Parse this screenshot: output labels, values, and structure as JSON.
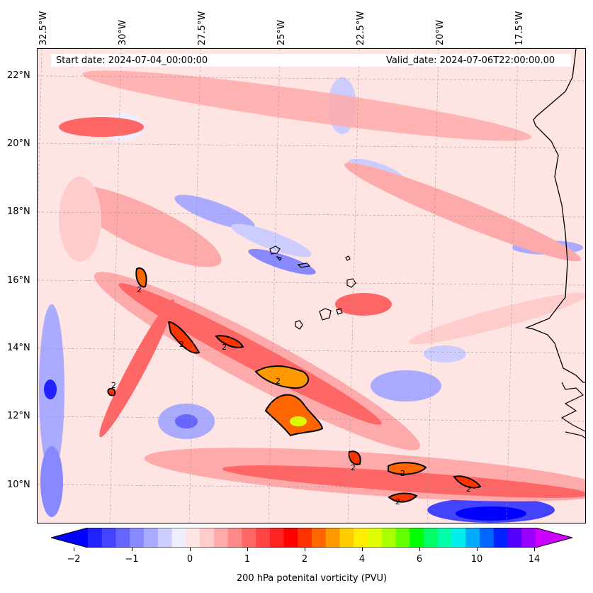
{
  "map": {
    "start_date_text": "Start date: 2024-07-04_00:00:00",
    "valid_date_text": "Valid_date: 2024-07-06T22:00:00.00",
    "lon_labels": [
      "32.5°W",
      "30°W",
      "27.5°W",
      "25°W",
      "22.5°W",
      "20°W",
      "17.5°W"
    ],
    "lat_labels": [
      "22°N",
      "20°N",
      "18°N",
      "16°N",
      "14°N",
      "12°N",
      "10°N"
    ],
    "contour_label": "2",
    "base_color": "#ffe4e4",
    "coast_color": "#000000"
  },
  "colorbar": {
    "label": "200 hPa potenital vorticity (PVU)",
    "ticks": [
      "−2",
      "−1",
      "0",
      "1",
      "2",
      "4",
      "6",
      "10",
      "14"
    ],
    "colors": [
      "#0000ff",
      "#2222ff",
      "#4444ff",
      "#6666ff",
      "#8888ff",
      "#aaaaff",
      "#ccccff",
      "#eeeeff",
      "#ffe4e4",
      "#ffcccc",
      "#ffaaaa",
      "#ff8888",
      "#ff6666",
      "#ff4444",
      "#ff2222",
      "#ff0000",
      "#ff3300",
      "#ff6600",
      "#ff9900",
      "#ffcc00",
      "#ffee00",
      "#ddff00",
      "#aaff00",
      "#66ff00",
      "#00ff00",
      "#00ff66",
      "#00ffaa",
      "#00eeee",
      "#00aaff",
      "#0066ff",
      "#0022ff",
      "#5500ff",
      "#9900ff",
      "#cc00ff"
    ]
  }
}
